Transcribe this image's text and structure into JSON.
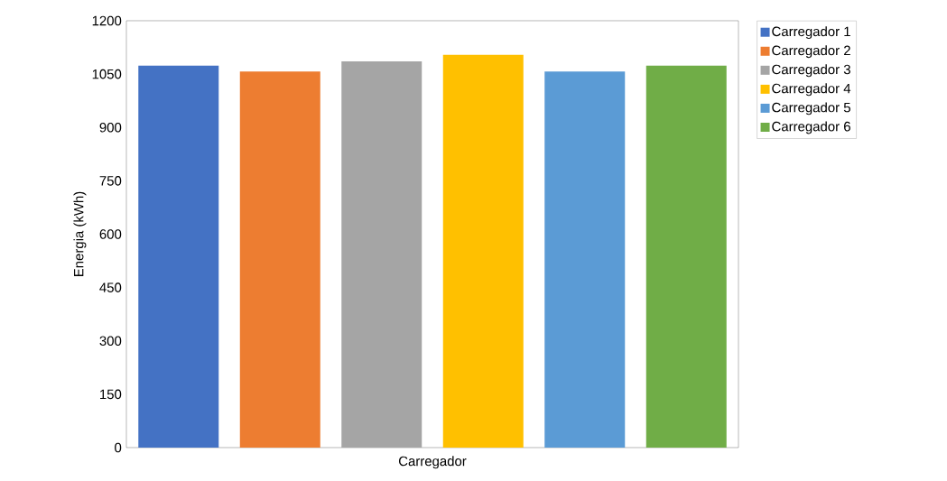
{
  "chart_data": {
    "type": "bar",
    "xlabel": "Carregador",
    "ylabel": "Energia (kWh)",
    "categories": [
      null
    ],
    "series": [
      {
        "name": "Carregador 1",
        "color": "#4472c4",
        "values": [
          1074
        ]
      },
      {
        "name": "Carregador 2",
        "color": "#ed7d31",
        "values": [
          1057
        ]
      },
      {
        "name": "Carregador 3",
        "color": "#a5a5a5",
        "values": [
          1086
        ]
      },
      {
        "name": "Carregador 4",
        "color": "#ffc000",
        "values": [
          1104
        ]
      },
      {
        "name": "Carregador 5",
        "color": "#5b9bd5",
        "values": [
          1057
        ]
      },
      {
        "name": "Carregador 6",
        "color": "#70ad47",
        "values": [
          1074
        ]
      }
    ],
    "ylim": [
      0,
      1200
    ],
    "yticks": [
      0,
      150,
      300,
      450,
      600,
      750,
      900,
      1050,
      1200
    ],
    "grid": false,
    "legend": "top right"
  }
}
